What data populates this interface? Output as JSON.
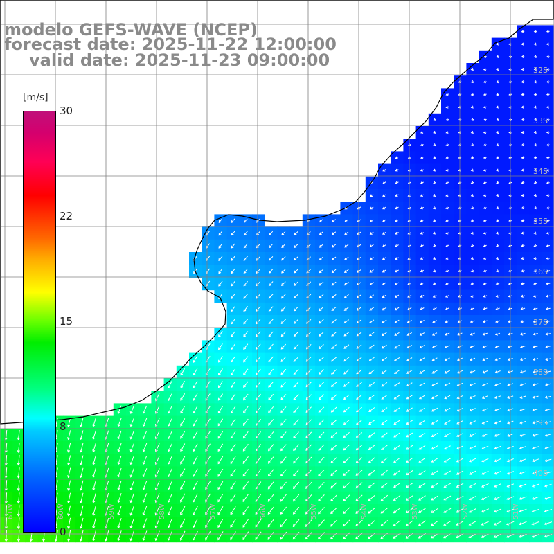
{
  "header": {
    "model_line": "modelo GEFS-WAVE (NCEP)",
    "forecast_line": "forecast date: 2025-11-22 12:00:00",
    "valid_line": "valid date: 2025-11-23 09:00:00"
  },
  "colorbar": {
    "unit": "[m/s]",
    "ticks": [
      "30",
      "22",
      "15",
      "8",
      "0"
    ],
    "range": [
      0,
      30
    ]
  },
  "grid": {
    "lat_labels": [
      "32S",
      "33S",
      "34S",
      "35S",
      "36S",
      "37S",
      "38S",
      "39S",
      "40S"
    ],
    "lon_labels": [
      "61W",
      "60W",
      "59W",
      "58W",
      "57W",
      "56W",
      "55W",
      "54W",
      "53W",
      "52W",
      "51W"
    ]
  },
  "colors": {
    "land": "#ffffff",
    "coast": "#000000",
    "grid": "#808080",
    "arrows": "#ffffff"
  }
}
